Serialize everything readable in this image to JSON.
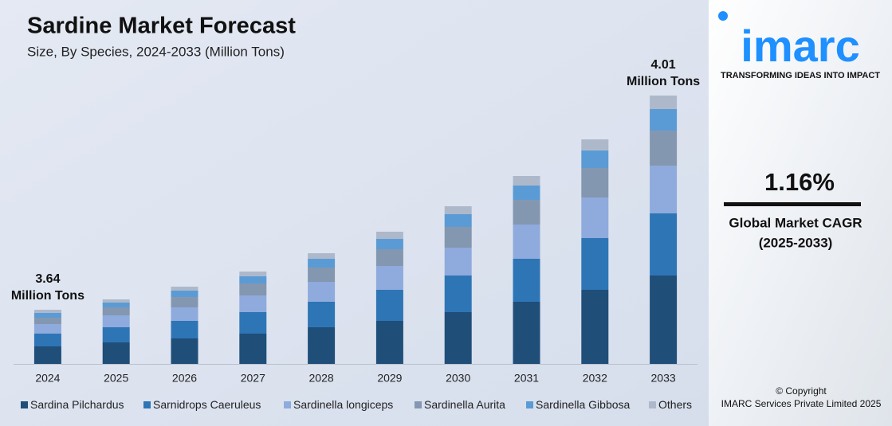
{
  "chart_data": {
    "type": "stacked-bar",
    "title": "Sardine Market Forecast",
    "subtitle": "Size, By Species, 2024-2033 (Million Tons)",
    "categories": [
      "2024",
      "2025",
      "2026",
      "2027",
      "2028",
      "2029",
      "2030",
      "2031",
      "2032",
      "2033"
    ],
    "series": [
      {
        "name": "Sardina Pilchardus",
        "color": "#1f4e79",
        "values": [
          22,
          27,
          32,
          38,
          46,
          54,
          65,
          78,
          93,
          111
        ]
      },
      {
        "name": "Sarnidrops Caeruleus",
        "color": "#2e75b6",
        "values": [
          16,
          19,
          22,
          27,
          32,
          39,
          46,
          54,
          65,
          78
        ]
      },
      {
        "name": "Sardinella longiceps",
        "color": "#8faadc",
        "values": [
          12,
          15,
          17,
          21,
          25,
          30,
          35,
          43,
          51,
          60
        ]
      },
      {
        "name": "Sardinella Aurita",
        "color": "#8497b0",
        "values": [
          8,
          10,
          13,
          15,
          18,
          21,
          26,
          31,
          37,
          44
        ]
      },
      {
        "name": "Sardinella Gibbosa",
        "color": "#5b9bd5",
        "values": [
          6,
          6,
          8,
          9,
          11,
          13,
          16,
          18,
          22,
          27
        ]
      },
      {
        "name": "Others",
        "color": "#adb9ca",
        "values": [
          4,
          4,
          5,
          6,
          7,
          9,
          10,
          12,
          14,
          17
        ]
      }
    ],
    "ylim": [
      0,
      340
    ],
    "annotations": [
      {
        "lines": [
          "3.64",
          "Million Tons"
        ]
      },
      {
        "lines": [
          "4.01",
          "Million Tons"
        ]
      }
    ]
  },
  "sidebar": {
    "logo": "imarc",
    "tagline": "TRANSFORMING IDEAS INTO IMPACT",
    "cagr": "1.16%",
    "cagr_label": [
      "Global Market CAGR",
      "(2025-2033)"
    ],
    "copyright": [
      "© Copyright",
      "IMARC Services Private Limited 2025"
    ]
  }
}
